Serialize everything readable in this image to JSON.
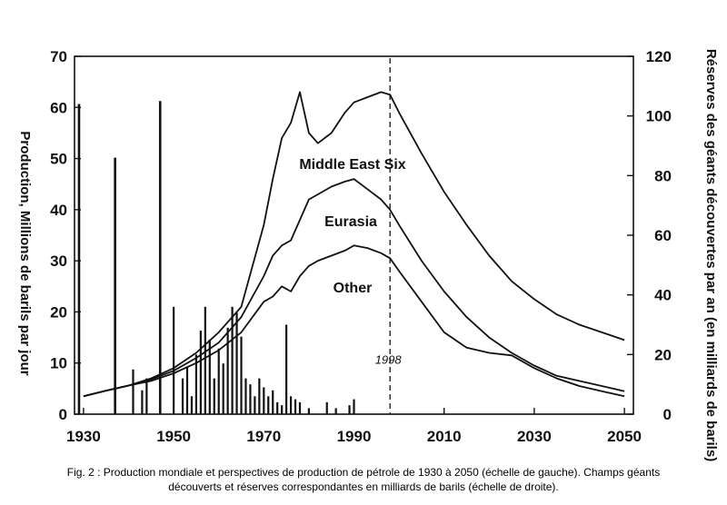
{
  "chart_data": {
    "type": "line",
    "x_ticks": [
      1930,
      1950,
      1970,
      1990,
      2010,
      2030,
      2050
    ],
    "xlim": [
      1928,
      2052
    ],
    "ylabel": "Production, Millions de barils par jour",
    "ylim": [
      0,
      70
    ],
    "y_ticks": [
      0,
      10,
      20,
      30,
      40,
      50,
      60,
      70
    ],
    "y2label": "Réserves des géants découvertes par an (en milliards de barils)",
    "y2lim": [
      0,
      120
    ],
    "y2_ticks": [
      0,
      20,
      40,
      60,
      80,
      100,
      120
    ],
    "series": [
      {
        "name": "Middle East Six",
        "x": [
          1930,
          1935,
          1940,
          1945,
          1950,
          1955,
          1960,
          1965,
          1970,
          1972,
          1974,
          1976,
          1978,
          1980,
          1982,
          1985,
          1988,
          1990,
          1993,
          1996,
          1998,
          2000,
          2005,
          2010,
          2015,
          2020,
          2025,
          2030,
          2035,
          2040,
          2045,
          2050
        ],
        "values": [
          3.5,
          4.6,
          5.6,
          7,
          9,
          12,
          16,
          21,
          37,
          46,
          54,
          57,
          63,
          55,
          53,
          55,
          59,
          61,
          62,
          63,
          62.5,
          59,
          51,
          43.5,
          37,
          31,
          26,
          22.5,
          19.5,
          17.5,
          16,
          14.5
        ]
      },
      {
        "name": "Eurasia",
        "x": [
          1930,
          1935,
          1940,
          1945,
          1950,
          1955,
          1960,
          1965,
          1970,
          1972,
          1974,
          1976,
          1978,
          1980,
          1982,
          1985,
          1988,
          1990,
          1993,
          1996,
          1998,
          2000,
          2005,
          2010,
          2015,
          2020,
          2025,
          2030,
          2035,
          2040,
          2045,
          2050
        ],
        "values": [
          3.5,
          4.6,
          5.6,
          6.8,
          8.5,
          11,
          14,
          19,
          27,
          31,
          33,
          34,
          38,
          42,
          43,
          44.5,
          45.5,
          46,
          44,
          42,
          40,
          37,
          30,
          24,
          19,
          15,
          12,
          9.5,
          7.5,
          6.5,
          5.5,
          4.5
        ]
      },
      {
        "name": "Other",
        "x": [
          1930,
          1935,
          1940,
          1945,
          1950,
          1955,
          1960,
          1965,
          1970,
          1972,
          1974,
          1976,
          1978,
          1980,
          1982,
          1985,
          1988,
          1990,
          1993,
          1996,
          1998,
          2000,
          2005,
          2010,
          2015,
          2020,
          2025,
          2030,
          2035,
          2040,
          2045,
          2050
        ],
        "values": [
          3.5,
          4.6,
          5.6,
          6.5,
          8,
          10,
          12.5,
          16,
          22,
          23,
          25,
          24,
          27,
          29,
          30,
          31,
          32,
          33,
          32.5,
          31.5,
          30.5,
          28,
          22,
          16,
          13,
          12,
          11.5,
          9,
          7,
          5.5,
          4.5,
          3.5
        ]
      },
      {
        "name": "Champs géants découverts",
        "type": "bar",
        "axis": "right",
        "x": [
          1929,
          1937,
          1941,
          1943,
          1944,
          1947,
          1950,
          1952,
          1953,
          1954,
          1955,
          1956,
          1957,
          1958,
          1959,
          1960,
          1961,
          1962,
          1963,
          1964,
          1965,
          1966,
          1967,
          1968,
          1969,
          1970,
          1971,
          1972,
          1973,
          1974,
          1975,
          1976,
          1977,
          1978,
          1980,
          1984,
          1986,
          1989,
          1990
        ],
        "values": [
          104,
          86,
          15,
          8,
          12,
          105,
          36,
          12,
          16,
          6,
          20,
          28,
          36,
          25,
          12,
          22,
          17,
          29,
          36,
          34,
          26,
          12,
          10,
          6,
          12,
          9,
          6,
          8,
          4,
          3,
          30,
          6,
          5,
          4,
          2,
          4,
          2,
          3,
          5
        ]
      }
    ],
    "annotations": [
      {
        "text": "1998",
        "x": 1998
      }
    ]
  },
  "caption": {
    "line1": "Fig. 2 : Production mondiale et perspectives de production de pétrole de 1930 à 2050 (échelle de gauche). Champs géants",
    "line2": "découverts et réserves correspondantes en milliards de barils (échelle de droite)."
  }
}
